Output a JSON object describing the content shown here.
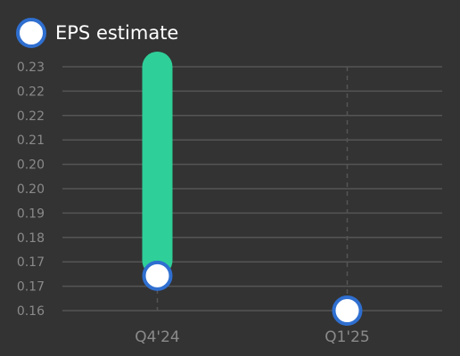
{
  "chart_data": {
    "type": "range_dot",
    "categories": [
      "Q4'24",
      "Q1'25"
    ],
    "series": [
      {
        "name": "EPS estimate",
        "color": "#2f6fd0",
        "values": [
          0.17,
          0.16
        ]
      }
    ],
    "bars": {
      "color": "#2ecf98",
      "values": [
        0.23,
        null
      ]
    },
    "ylim": [
      0.16,
      0.23
    ],
    "yticks": [
      {
        "value": 0.16,
        "label": "0.16"
      },
      {
        "value": 0.167,
        "label": "0.17"
      },
      {
        "value": 0.174,
        "label": "0.17"
      },
      {
        "value": 0.181,
        "label": "0.18"
      },
      {
        "value": 0.188,
        "label": "0.19"
      },
      {
        "value": 0.195,
        "label": "0.20"
      },
      {
        "value": 0.202,
        "label": "0.20"
      },
      {
        "value": 0.209,
        "label": "0.21"
      },
      {
        "value": 0.216,
        "label": "0.22"
      },
      {
        "value": 0.223,
        "label": "0.22"
      },
      {
        "value": 0.23,
        "label": "0.23"
      }
    ],
    "grid": true
  }
}
